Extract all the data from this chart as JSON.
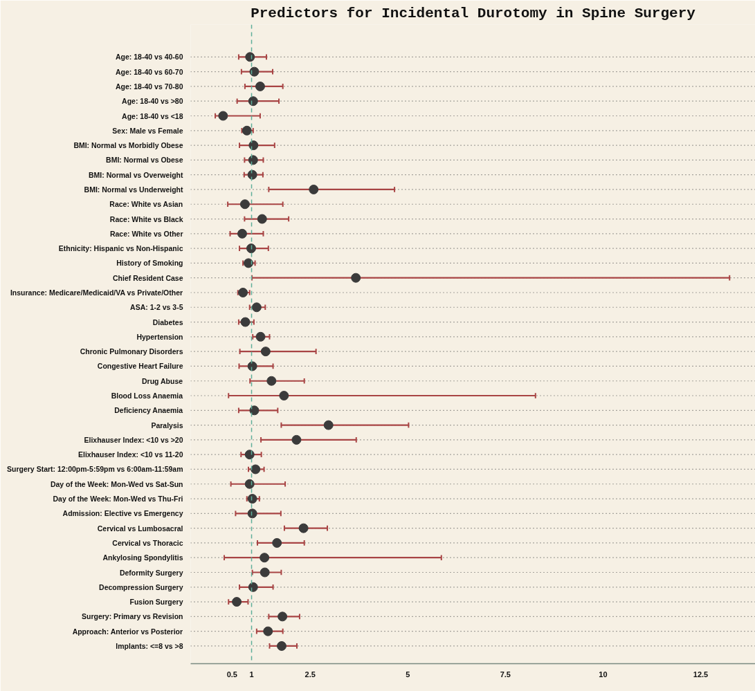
{
  "chart_data": {
    "type": "scatter",
    "orientation": "horizontal",
    "title": "Predictors for Incidental Durotomy in Spine Surgery",
    "categories": [
      "Age: 18-40 vs 40-60",
      "Age: 18-40 vs 60-70",
      "Age: 18-40 vs 70-80",
      "Age: 18-40 vs >80",
      "Age: 18-40 vs <18",
      "Sex: Male vs Female",
      "BMI: Normal vs Morbidly Obese",
      "BMI: Normal vs Obese",
      "BMI: Normal vs Overweight",
      "BMI: Normal vs Underweight",
      "Race: White vs Asian",
      "Race: White vs Black",
      "Race: White vs Other",
      "Ethnicity: Hispanic vs Non-Hispanic",
      "History of Smoking",
      "Chief Resident Case",
      "Insurance: Medicare/Medicaid/VA vs Private/Other",
      "ASA: 1-2 vs 3-5",
      "Diabetes",
      "Hypertension",
      "Chronic Pulmonary Disorders",
      "Congestive Heart Failure",
      "Drug Abuse",
      "Blood Loss Anaemia",
      "Deficiency Anaemia",
      "Paralysis",
      "Elixhauser Index: <10 vs >20",
      "Elixhauser Index: <10 vs 11-20",
      "Surgery Start: 12:00pm-5:59pm vs 6:00am-11:59am",
      "Day of the Week: Mon-Wed vs Sat-Sun",
      "Day of the Week: Mon-Wed vs Thu-Fri",
      "Admission: Elective vs Emergency",
      "Cervical vs Lumbosacral",
      "Cervical vs Thoracic",
      "Ankylosing Spondylitis",
      "Deformity Surgery",
      "Decompression Surgery",
      "Fusion Surgery",
      "Surgery: Primary vs Revision",
      "Approach: Anterior vs Posterior",
      "Implants: <=8 vs >8"
    ],
    "values": [
      0.96,
      1.07,
      1.22,
      1.04,
      0.27,
      0.88,
      1.05,
      1.04,
      1.02,
      2.59,
      0.83,
      1.27,
      0.76,
      0.99,
      0.92,
      3.67,
      0.78,
      1.13,
      0.84,
      1.23,
      1.36,
      1.02,
      1.51,
      1.83,
      1.07,
      2.97,
      2.15,
      0.95,
      1.1,
      0.95,
      1.02,
      1.02,
      2.33,
      1.65,
      1.33,
      1.34,
      1.04,
      0.62,
      1.79,
      1.42,
      1.77
    ],
    "errors": [
      [
        0.67,
        1.38
      ],
      [
        0.74,
        1.54
      ],
      [
        0.83,
        1.8
      ],
      [
        0.63,
        1.7
      ],
      [
        0.07,
        1.22
      ],
      [
        0.75,
        1.04
      ],
      [
        0.69,
        1.59
      ],
      [
        0.82,
        1.3
      ],
      [
        0.81,
        1.29
      ],
      [
        1.44,
        4.66
      ],
      [
        0.39,
        1.8
      ],
      [
        0.82,
        1.95
      ],
      [
        0.45,
        1.3
      ],
      [
        0.69,
        1.43
      ],
      [
        0.78,
        1.09
      ],
      [
        1.01,
        13.24
      ],
      [
        0.65,
        0.95
      ],
      [
        0.95,
        1.35
      ],
      [
        0.67,
        1.06
      ],
      [
        1.03,
        1.46
      ],
      [
        0.7,
        2.65
      ],
      [
        0.68,
        1.55
      ],
      [
        0.96,
        2.35
      ],
      [
        0.41,
        8.27
      ],
      [
        0.67,
        1.67
      ],
      [
        1.76,
        5.02
      ],
      [
        1.24,
        3.68
      ],
      [
        0.73,
        1.25
      ],
      [
        0.92,
        1.32
      ],
      [
        0.47,
        1.86
      ],
      [
        0.88,
        1.2
      ],
      [
        0.59,
        1.75
      ],
      [
        1.84,
        2.94
      ],
      [
        1.15,
        2.35
      ],
      [
        0.3,
        5.86
      ],
      [
        1.02,
        1.76
      ],
      [
        0.69,
        1.55
      ],
      [
        0.41,
        0.91
      ],
      [
        1.44,
        2.23
      ],
      [
        1.13,
        1.8
      ],
      [
        1.46,
        2.16
      ]
    ],
    "color": "#3b3b3b",
    "marker": "circle",
    "grid": "y",
    "xlim": [
      -0.56,
      13.9
    ],
    "xticks": [
      0.5,
      1,
      2.5,
      5,
      7.5,
      10,
      12.5
    ],
    "ref_lines": [
      {
        "axis": "x",
        "value": 1,
        "color": "#5fae9a",
        "line_style": "dashed"
      }
    ]
  }
}
